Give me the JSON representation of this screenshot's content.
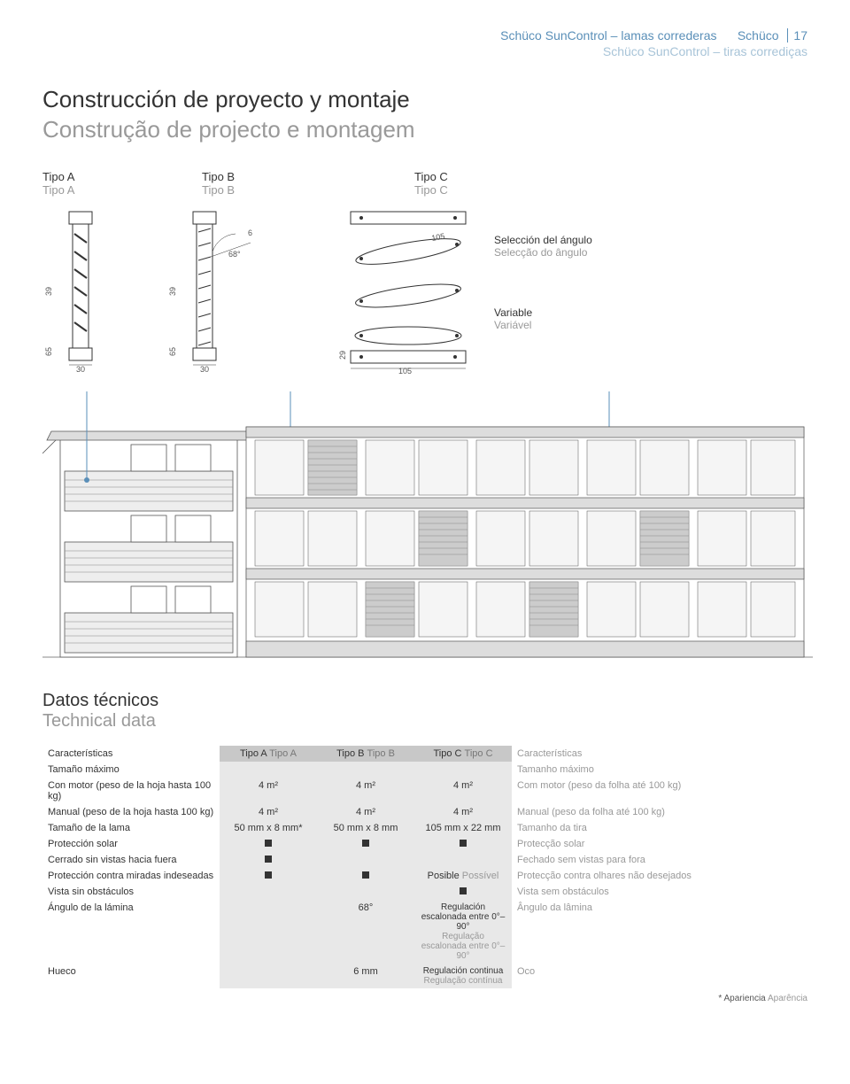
{
  "header": {
    "line1_a": "Schüco SunControl – lamas correderas",
    "line1_b": "Schüco",
    "pagenum": "17",
    "line2": "Schüco SunControl – tiras corrediças"
  },
  "title": {
    "main": "Construcción de proyecto y montaje",
    "sub": "Construção de projecto e montagem"
  },
  "types": {
    "a": {
      "main": "Tipo A",
      "sub": "Tipo A"
    },
    "b": {
      "main": "Tipo B",
      "sub": "Tipo B"
    },
    "c": {
      "main": "Tipo C",
      "sub": "Tipo C"
    }
  },
  "diagrams": {
    "a": {
      "w": "30",
      "h1": "65",
      "h2": "39"
    },
    "b": {
      "w": "30",
      "h1": "65",
      "h2": "39",
      "angle": "68°",
      "thick": "6"
    },
    "c": {
      "w": "105",
      "h": "29",
      "w2": "105"
    }
  },
  "annot_angle": {
    "main": "Selección del ángulo",
    "sub": "Selecção do ângulo"
  },
  "annot_var": {
    "main": "Variable",
    "sub": "Variável"
  },
  "data_section": {
    "title": "Datos técnicos",
    "sub": "Technical data"
  },
  "table": {
    "head": {
      "features": "Características",
      "colA": {
        "a": "Tipo A",
        "b": "Tipo A"
      },
      "colB": {
        "a": "Tipo B",
        "b": "Tipo B"
      },
      "colC": {
        "a": "Tipo C",
        "b": "Tipo C"
      },
      "features2": "Características"
    },
    "rows": [
      {
        "label": "Tamaño máximo",
        "a": "",
        "b": "",
        "c": "",
        "desc": "Tamanho máximo",
        "kind": "text"
      },
      {
        "label": "Con motor (peso de la hoja hasta 100 kg)",
        "a": "4 m²",
        "b": "4 m²",
        "c": "4 m²",
        "desc": "Com motor (peso da folha até 100 kg)",
        "kind": "text"
      },
      {
        "label": "Manual (peso de la hoja hasta 100 kg)",
        "a": "4 m²",
        "b": "4 m²",
        "c": "4 m²",
        "desc": "Manual (peso da folha até 100 kg)",
        "kind": "text"
      },
      {
        "label": "Tamaño de la lama",
        "a": "50 mm x 8 mm*",
        "b": "50 mm x 8 mm",
        "c": "105 mm x 22 mm",
        "desc": "Tamanho da tira",
        "kind": "text"
      },
      {
        "label": "Protección solar",
        "a": "■",
        "b": "■",
        "c": "■",
        "desc": "Protecção solar",
        "kind": "sq"
      },
      {
        "label": "Cerrado sin vistas hacia fuera",
        "a": "■",
        "b": "",
        "c": "",
        "desc": "Fechado sem vistas para fora",
        "kind": "sq"
      },
      {
        "label": "Protección contra miradas indeseadas",
        "a": "■",
        "b": "■",
        "c": "Posible Possível",
        "desc": "Protecção contra olhares não desejados",
        "kind": "mixed"
      },
      {
        "label": "Vista sin obstáculos",
        "a": "",
        "b": "",
        "c": "■",
        "desc": "Vista sem obstáculos",
        "kind": "sq"
      },
      {
        "label": "Ángulo de la lámina",
        "a": "",
        "b": "68°",
        "c": "Regulación escalonada entre 0°–90°\nRegulação escalonada entre 0°–90°",
        "desc": "Ângulo da lâmina",
        "kind": "text"
      },
      {
        "label": "Hueco",
        "a": "",
        "b": "6 mm",
        "c": "Regulación continua\nRegulação contínua",
        "desc": "Oco",
        "kind": "text"
      }
    ]
  },
  "footnote": {
    "main": "* Apariencia",
    "sub": "Aparência"
  }
}
